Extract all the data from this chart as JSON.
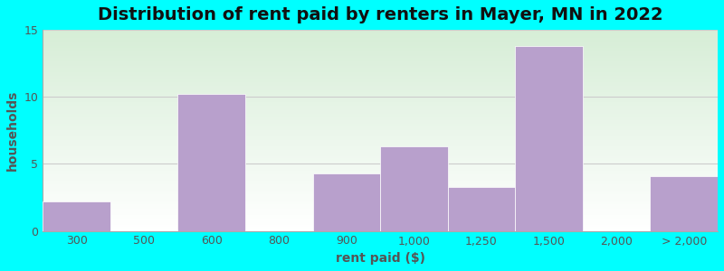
{
  "title": "Distribution of rent paid by renters in Mayer, MN in 2022",
  "xlabel": "rent paid ($)",
  "ylabel": "households",
  "bar_labels": [
    "300",
    "500",
    "600",
    "800",
    "900",
    "1,000",
    "1,250",
    "1,500",
    "2,000",
    "> 2,000"
  ],
  "bar_values": [
    2.2,
    0,
    10.2,
    0,
    4.3,
    6.3,
    3.3,
    13.8,
    0,
    4.1
  ],
  "bar_color": "#b8a0cc",
  "background_color": "#00ffff",
  "plot_bg_top": "#d6ecd6",
  "plot_bg_bottom": "#ffffff",
  "ylim": [
    0,
    15
  ],
  "yticks": [
    0,
    5,
    10,
    15
  ],
  "title_fontsize": 14,
  "axis_label_fontsize": 10,
  "tick_fontsize": 9,
  "tick_color": "#555555",
  "label_color": "#555555"
}
